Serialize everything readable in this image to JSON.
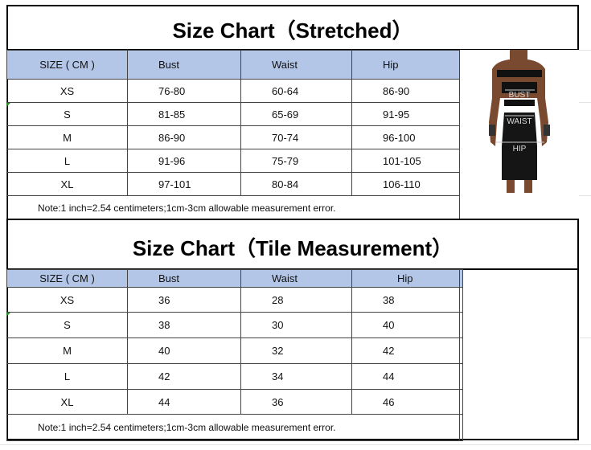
{
  "stretched": {
    "title": "Size Chart（Stretched）",
    "headers": [
      "SIZE ( CM )",
      "Bust",
      "Waist",
      "Hip"
    ],
    "rows": [
      [
        "XS",
        "76-80",
        "60-64",
        "86-90"
      ],
      [
        "S",
        "81-85",
        "65-69",
        "91-95"
      ],
      [
        "M",
        "86-90",
        "70-74",
        "96-100"
      ],
      [
        "L",
        "91-96",
        "75-79",
        "101-105"
      ],
      [
        "XL",
        "97-101",
        "80-84",
        "106-110"
      ]
    ],
    "note": "Note:1 inch=2.54 centimeters;1cm-3cm allowable measurement error."
  },
  "tile": {
    "title": "Size Chart（Tile Measurement）",
    "headers": [
      "SIZE ( CM )",
      "Bust",
      "Waist",
      "Hip"
    ],
    "rows": [
      [
        "XS",
        "36",
        "28",
        "38"
      ],
      [
        "S",
        "38",
        "30",
        "40"
      ],
      [
        "M",
        "40",
        "32",
        "42"
      ],
      [
        "L",
        "42",
        "34",
        "44"
      ],
      [
        "XL",
        "44",
        "36",
        "46"
      ]
    ],
    "note": "Note:1 inch=2.54 centimeters;1cm-3cm allowable measurement error."
  },
  "image_labels": {
    "bust": "BUST",
    "waist": "WAIST",
    "hip": "HIP"
  },
  "colors": {
    "header_bg": "#b4c6e7"
  }
}
